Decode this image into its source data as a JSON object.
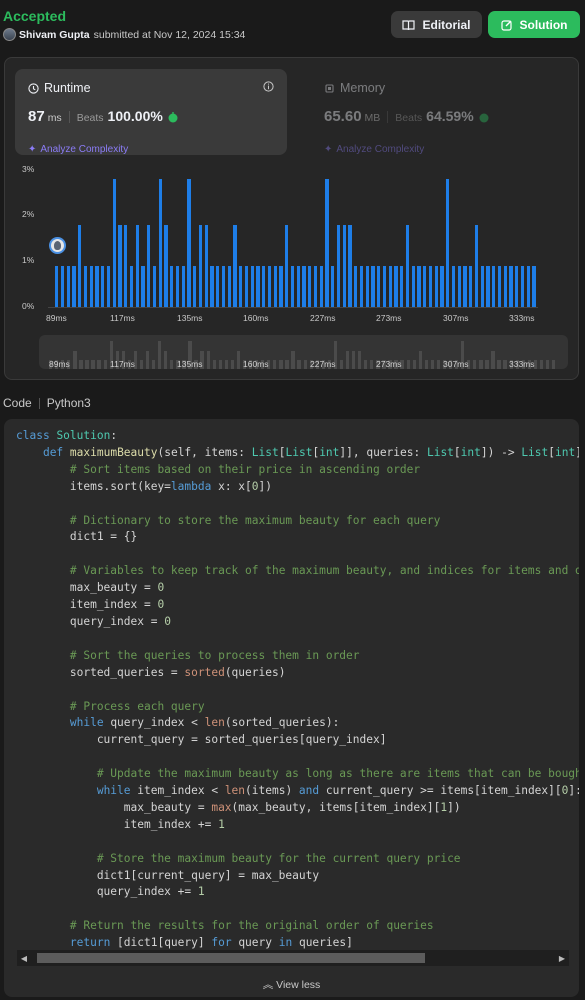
{
  "header": {
    "status": "Accepted",
    "author": "Shivam Gupta",
    "submitted": "submitted at Nov 12, 2024 15:34",
    "editorial_label": "Editorial",
    "solution_label": "Solution"
  },
  "runtime": {
    "title": "Runtime",
    "value": "87",
    "unit": "ms",
    "beats_label": "Beats",
    "beats_pct": "100.00%",
    "analyze": "Analyze Complexity"
  },
  "memory": {
    "title": "Memory",
    "value": "65.60",
    "unit": "MB",
    "beats_label": "Beats",
    "beats_pct": "64.59%",
    "analyze": "Analyze Complexity"
  },
  "chart_data": {
    "type": "bar",
    "ylim": [
      0,
      3
    ],
    "yticks": [
      "3%",
      "2%",
      "1%",
      "0%"
    ],
    "xticks": [
      "89ms",
      "117ms",
      "135ms",
      "160ms",
      "227ms",
      "273ms",
      "307ms",
      "333ms"
    ],
    "values": [
      0.9,
      0.9,
      0.9,
      0.9,
      1.8,
      0.9,
      0.9,
      0.9,
      0.9,
      0.9,
      2.8,
      1.8,
      1.8,
      0.9,
      1.8,
      0.9,
      1.8,
      0.9,
      2.8,
      1.8,
      0.9,
      0.9,
      0.9,
      2.8,
      0.9,
      1.8,
      1.8,
      0.9,
      0.9,
      0.9,
      0.9,
      1.8,
      0.9,
      0.9,
      0.9,
      0.9,
      0.9,
      0.9,
      0.9,
      0.9,
      1.8,
      0.9,
      0.9,
      0.9,
      0.9,
      0.9,
      0.9,
      2.8,
      0.9,
      1.8,
      1.8,
      1.8,
      0.9,
      0.9,
      0.9,
      0.9,
      0.9,
      0.9,
      0.9,
      0.9,
      0.9,
      1.8,
      0.9,
      0.9,
      0.9,
      0.9,
      0.9,
      0.9,
      2.8,
      0.9,
      0.9,
      0.9,
      0.9,
      1.8,
      0.9,
      0.9,
      0.9,
      0.9,
      0.9,
      0.9,
      0.9,
      0.9,
      0.9,
      0.9
    ]
  },
  "code": {
    "label": "Code",
    "language": "Python3",
    "view_less": "View less"
  },
  "colors": {
    "accepted": "#2cbb5d",
    "bar": "#1e7ee8",
    "analyze": "#8b7cf6"
  }
}
